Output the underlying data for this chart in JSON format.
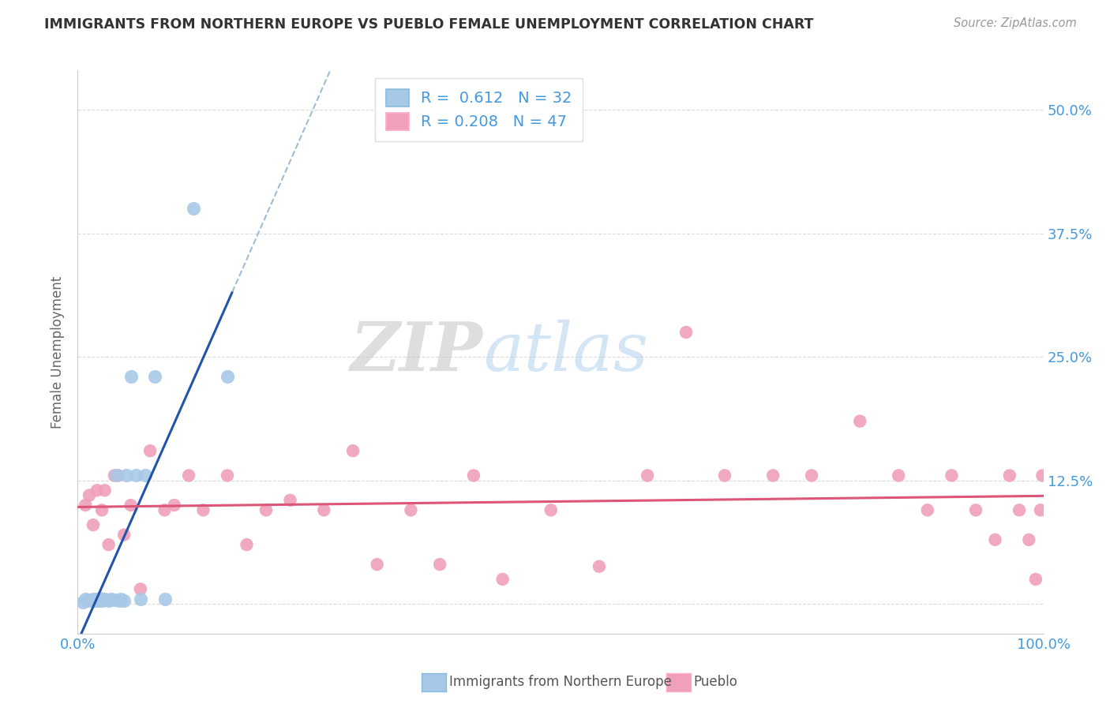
{
  "title": "IMMIGRANTS FROM NORTHERN EUROPE VS PUEBLO FEMALE UNEMPLOYMENT CORRELATION CHART",
  "source": "Source: ZipAtlas.com",
  "ylabel": "Female Unemployment",
  "R1": 0.612,
  "N1": 32,
  "R2": 0.208,
  "N2": 47,
  "blue_color": "#A8C8E8",
  "blue_line_color": "#2255AA",
  "blue_dash_color": "#88AACC",
  "pink_color": "#F0A0B8",
  "pink_line_color": "#DD5577",
  "grid_color": "#CCCCCC",
  "title_color": "#333333",
  "tick_color": "#4499DD",
  "watermark_zip_color": "#CCCCCC",
  "watermark_atlas_color": "#AACCEE",
  "legend_label1": "Immigrants from Northern Europe",
  "legend_label2": "Pueblo",
  "xlim": [
    0.0,
    1.0
  ],
  "ylim": [
    -0.03,
    0.54
  ],
  "xticks": [
    0.0,
    0.25,
    0.5,
    0.75,
    1.0
  ],
  "xticklabels": [
    "0.0%",
    "",
    "",
    "",
    "100.0%"
  ],
  "yticks": [
    0.0,
    0.125,
    0.25,
    0.375,
    0.5
  ],
  "yticklabels": [
    "",
    "12.5%",
    "25.0%",
    "37.5%",
    "50.0%"
  ],
  "blue_x": [
    0.005,
    0.008,
    0.01,
    0.012,
    0.015,
    0.016,
    0.018,
    0.019,
    0.02,
    0.021,
    0.022,
    0.023,
    0.025,
    0.026,
    0.028,
    0.03,
    0.032,
    0.035,
    0.038,
    0.04,
    0.043,
    0.045,
    0.048,
    0.05,
    0.055,
    0.06,
    0.065,
    0.07,
    0.08,
    0.09,
    0.12,
    0.155
  ],
  "blue_y": [
    0.002,
    0.005,
    0.003,
    0.004,
    0.003,
    0.005,
    0.004,
    0.003,
    0.005,
    0.004,
    0.003,
    0.006,
    0.004,
    0.003,
    0.005,
    0.004,
    0.003,
    0.005,
    0.004,
    0.13,
    0.003,
    0.005,
    0.003,
    0.13,
    0.23,
    0.13,
    0.005,
    0.13,
    0.23,
    0.005,
    0.4,
    0.23
  ],
  "pink_x": [
    0.008,
    0.012,
    0.016,
    0.02,
    0.025,
    0.028,
    0.032,
    0.038,
    0.042,
    0.048,
    0.055,
    0.065,
    0.075,
    0.09,
    0.1,
    0.115,
    0.13,
    0.155,
    0.175,
    0.195,
    0.22,
    0.255,
    0.285,
    0.31,
    0.345,
    0.375,
    0.41,
    0.44,
    0.49,
    0.54,
    0.59,
    0.63,
    0.67,
    0.72,
    0.76,
    0.81,
    0.85,
    0.88,
    0.905,
    0.93,
    0.95,
    0.965,
    0.975,
    0.985,
    0.992,
    0.997,
    0.999
  ],
  "pink_y": [
    0.1,
    0.11,
    0.08,
    0.115,
    0.095,
    0.115,
    0.06,
    0.13,
    0.13,
    0.07,
    0.1,
    0.015,
    0.155,
    0.095,
    0.1,
    0.13,
    0.095,
    0.13,
    0.06,
    0.095,
    0.105,
    0.095,
    0.155,
    0.04,
    0.095,
    0.04,
    0.13,
    0.025,
    0.095,
    0.038,
    0.13,
    0.275,
    0.13,
    0.13,
    0.13,
    0.185,
    0.13,
    0.095,
    0.13,
    0.095,
    0.065,
    0.13,
    0.095,
    0.065,
    0.025,
    0.095,
    0.13
  ]
}
